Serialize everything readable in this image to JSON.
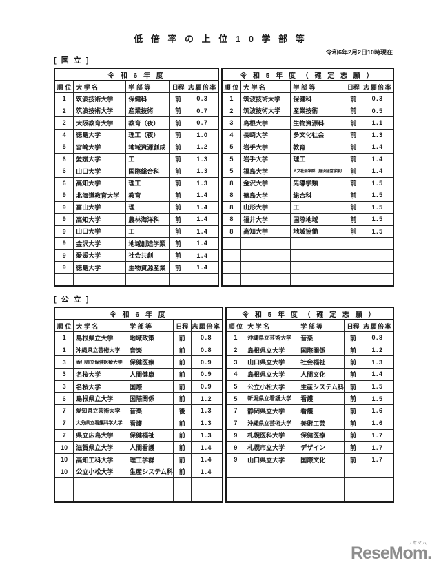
{
  "page": {
    "title": "低 倍 率 の 上 位 1 0 学 部 等",
    "as_of": "令和6年2月2日10時現在"
  },
  "logo": {
    "text": "ReseMom.",
    "sub": "リセマム"
  },
  "columns": [
    "順 位",
    "大 学 名",
    "学 部 等",
    "日程",
    "志願倍率"
  ],
  "sections": [
    {
      "label": "[ 国 立 ]",
      "tables": [
        {
          "year_header": "令 和 6 年 度",
          "empty_rows": 1,
          "rows": [
            [
              "1",
              "筑波技術大学",
              "保健科",
              "前",
              "0.3"
            ],
            [
              "2",
              "筑波技術大学",
              "産業技術",
              "前",
              "0.7"
            ],
            [
              "2",
              "大阪教育大学",
              "教育（夜）",
              "前",
              "0.7"
            ],
            [
              "4",
              "徳島大学",
              "理工（夜）",
              "前",
              "1.0"
            ],
            [
              "5",
              "宮崎大学",
              "地域資源創成",
              "前",
              "1.2"
            ],
            [
              "6",
              "愛媛大学",
              "工",
              "前",
              "1.3"
            ],
            [
              "6",
              "山口大学",
              "国際総合科",
              "前",
              "1.3"
            ],
            [
              "6",
              "高知大学",
              "理工",
              "前",
              "1.3"
            ],
            [
              "9",
              "北海道教育大学",
              "教育",
              "前",
              "1.4"
            ],
            [
              "9",
              "富山大学",
              "理",
              "前",
              "1.4"
            ],
            [
              "9",
              "高知大学",
              "農林海洋科",
              "前",
              "1.4"
            ],
            [
              "9",
              "山口大学",
              "工",
              "前",
              "1.4"
            ],
            [
              "9",
              "金沢大学",
              "地域創造学類",
              "前",
              "1.4"
            ],
            [
              "9",
              "愛媛大学",
              "社会共創",
              "前",
              "1.4"
            ],
            [
              "9",
              "徳島大学",
              "生物資源産業",
              "前",
              "1.4"
            ]
          ]
        },
        {
          "year_header": "令 和 5 年 度 （ 確 定 志 願 ）",
          "empty_rows": 4,
          "rows": [
            [
              "1",
              "筑波技術大学",
              "保健科",
              "前",
              "0.3"
            ],
            [
              "2",
              "筑波技術大学",
              "産業技術",
              "前",
              "0.5"
            ],
            [
              "3",
              "島根大学",
              "生物資源科",
              "前",
              "1.1"
            ],
            [
              "4",
              "長崎大学",
              "多文化社会",
              "前",
              "1.3"
            ],
            [
              "5",
              "岩手大学",
              "教育",
              "前",
              "1.4"
            ],
            [
              "5",
              "岩手大学",
              "理工",
              "前",
              "1.4"
            ],
            [
              "5",
              "福島大学",
              "人文社会学群（経済経営学類）",
              "前",
              "1.4"
            ],
            [
              "8",
              "金沢大学",
              "先導学類",
              "前",
              "1.5"
            ],
            [
              "8",
              "徳島大学",
              "総合科",
              "前",
              "1.5"
            ],
            [
              "8",
              "山形大学",
              "工",
              "前",
              "1.5"
            ],
            [
              "8",
              "福井大学",
              "国際地域",
              "前",
              "1.5"
            ],
            [
              "8",
              "高知大学",
              "地域協働",
              "前",
              "1.5"
            ]
          ]
        }
      ]
    },
    {
      "label": "[ 公 立 ]",
      "tables": [
        {
          "year_header": "令 和 6 年 度",
          "empty_rows": 2,
          "rows": [
            [
              "1",
              "島根県立大学",
              "地域政策",
              "前",
              "0.8"
            ],
            [
              "1",
              "沖縄県立芸術大学",
              "音楽",
              "前",
              "0.8"
            ],
            [
              "3",
              "香川県立保健医療大学",
              "保健医療",
              "前",
              "0.9"
            ],
            [
              "3",
              "名桜大学",
              "人間健康",
              "前",
              "0.9"
            ],
            [
              "3",
              "名桜大学",
              "国際",
              "前",
              "0.9"
            ],
            [
              "6",
              "島根県立大学",
              "国際関係",
              "前",
              "1.2"
            ],
            [
              "7",
              "愛知県立芸術大学",
              "音楽",
              "後",
              "1.3"
            ],
            [
              "7",
              "大分県立看護科学大学",
              "看護",
              "前",
              "1.3"
            ],
            [
              "7",
              "県立広島大学",
              "保健福祉",
              "前",
              "1.3"
            ],
            [
              "10",
              "滋賀県立大学",
              "人間看護",
              "前",
              "1.4"
            ],
            [
              "10",
              "高知工科大学",
              "理工学群",
              "前",
              "1.4"
            ],
            [
              "10",
              "公立小松大学",
              "生産システム科",
              "前",
              "1.4"
            ]
          ]
        },
        {
          "year_header": "令 和 5 年 度 （ 確 定 志 願 ）",
          "empty_rows": 3,
          "rows": [
            [
              "1",
              "沖縄県立芸術大学",
              "音楽",
              "前",
              "0.8"
            ],
            [
              "2",
              "島根県立大学",
              "国際関係",
              "前",
              "1.2"
            ],
            [
              "3",
              "山口県立大学",
              "社会福祉",
              "前",
              "1.3"
            ],
            [
              "4",
              "島根県立大学",
              "人間文化",
              "前",
              "1.4"
            ],
            [
              "5",
              "公立小松大学",
              "生産システム科",
              "前",
              "1.5"
            ],
            [
              "5",
              "新潟県立看護大学",
              "看護",
              "前",
              "1.5"
            ],
            [
              "7",
              "静岡県立大学",
              "看護",
              "前",
              "1.6"
            ],
            [
              "7",
              "沖縄県立芸術大学",
              "美術工芸",
              "前",
              "1.6"
            ],
            [
              "9",
              "札幌医科大学",
              "保健医療",
              "前",
              "1.7"
            ],
            [
              "9",
              "札幌市立大学",
              "デザイン",
              "前",
              "1.7"
            ],
            [
              "9",
              "山口県立大学",
              "国際文化",
              "前",
              "1.7"
            ]
          ]
        }
      ]
    }
  ]
}
